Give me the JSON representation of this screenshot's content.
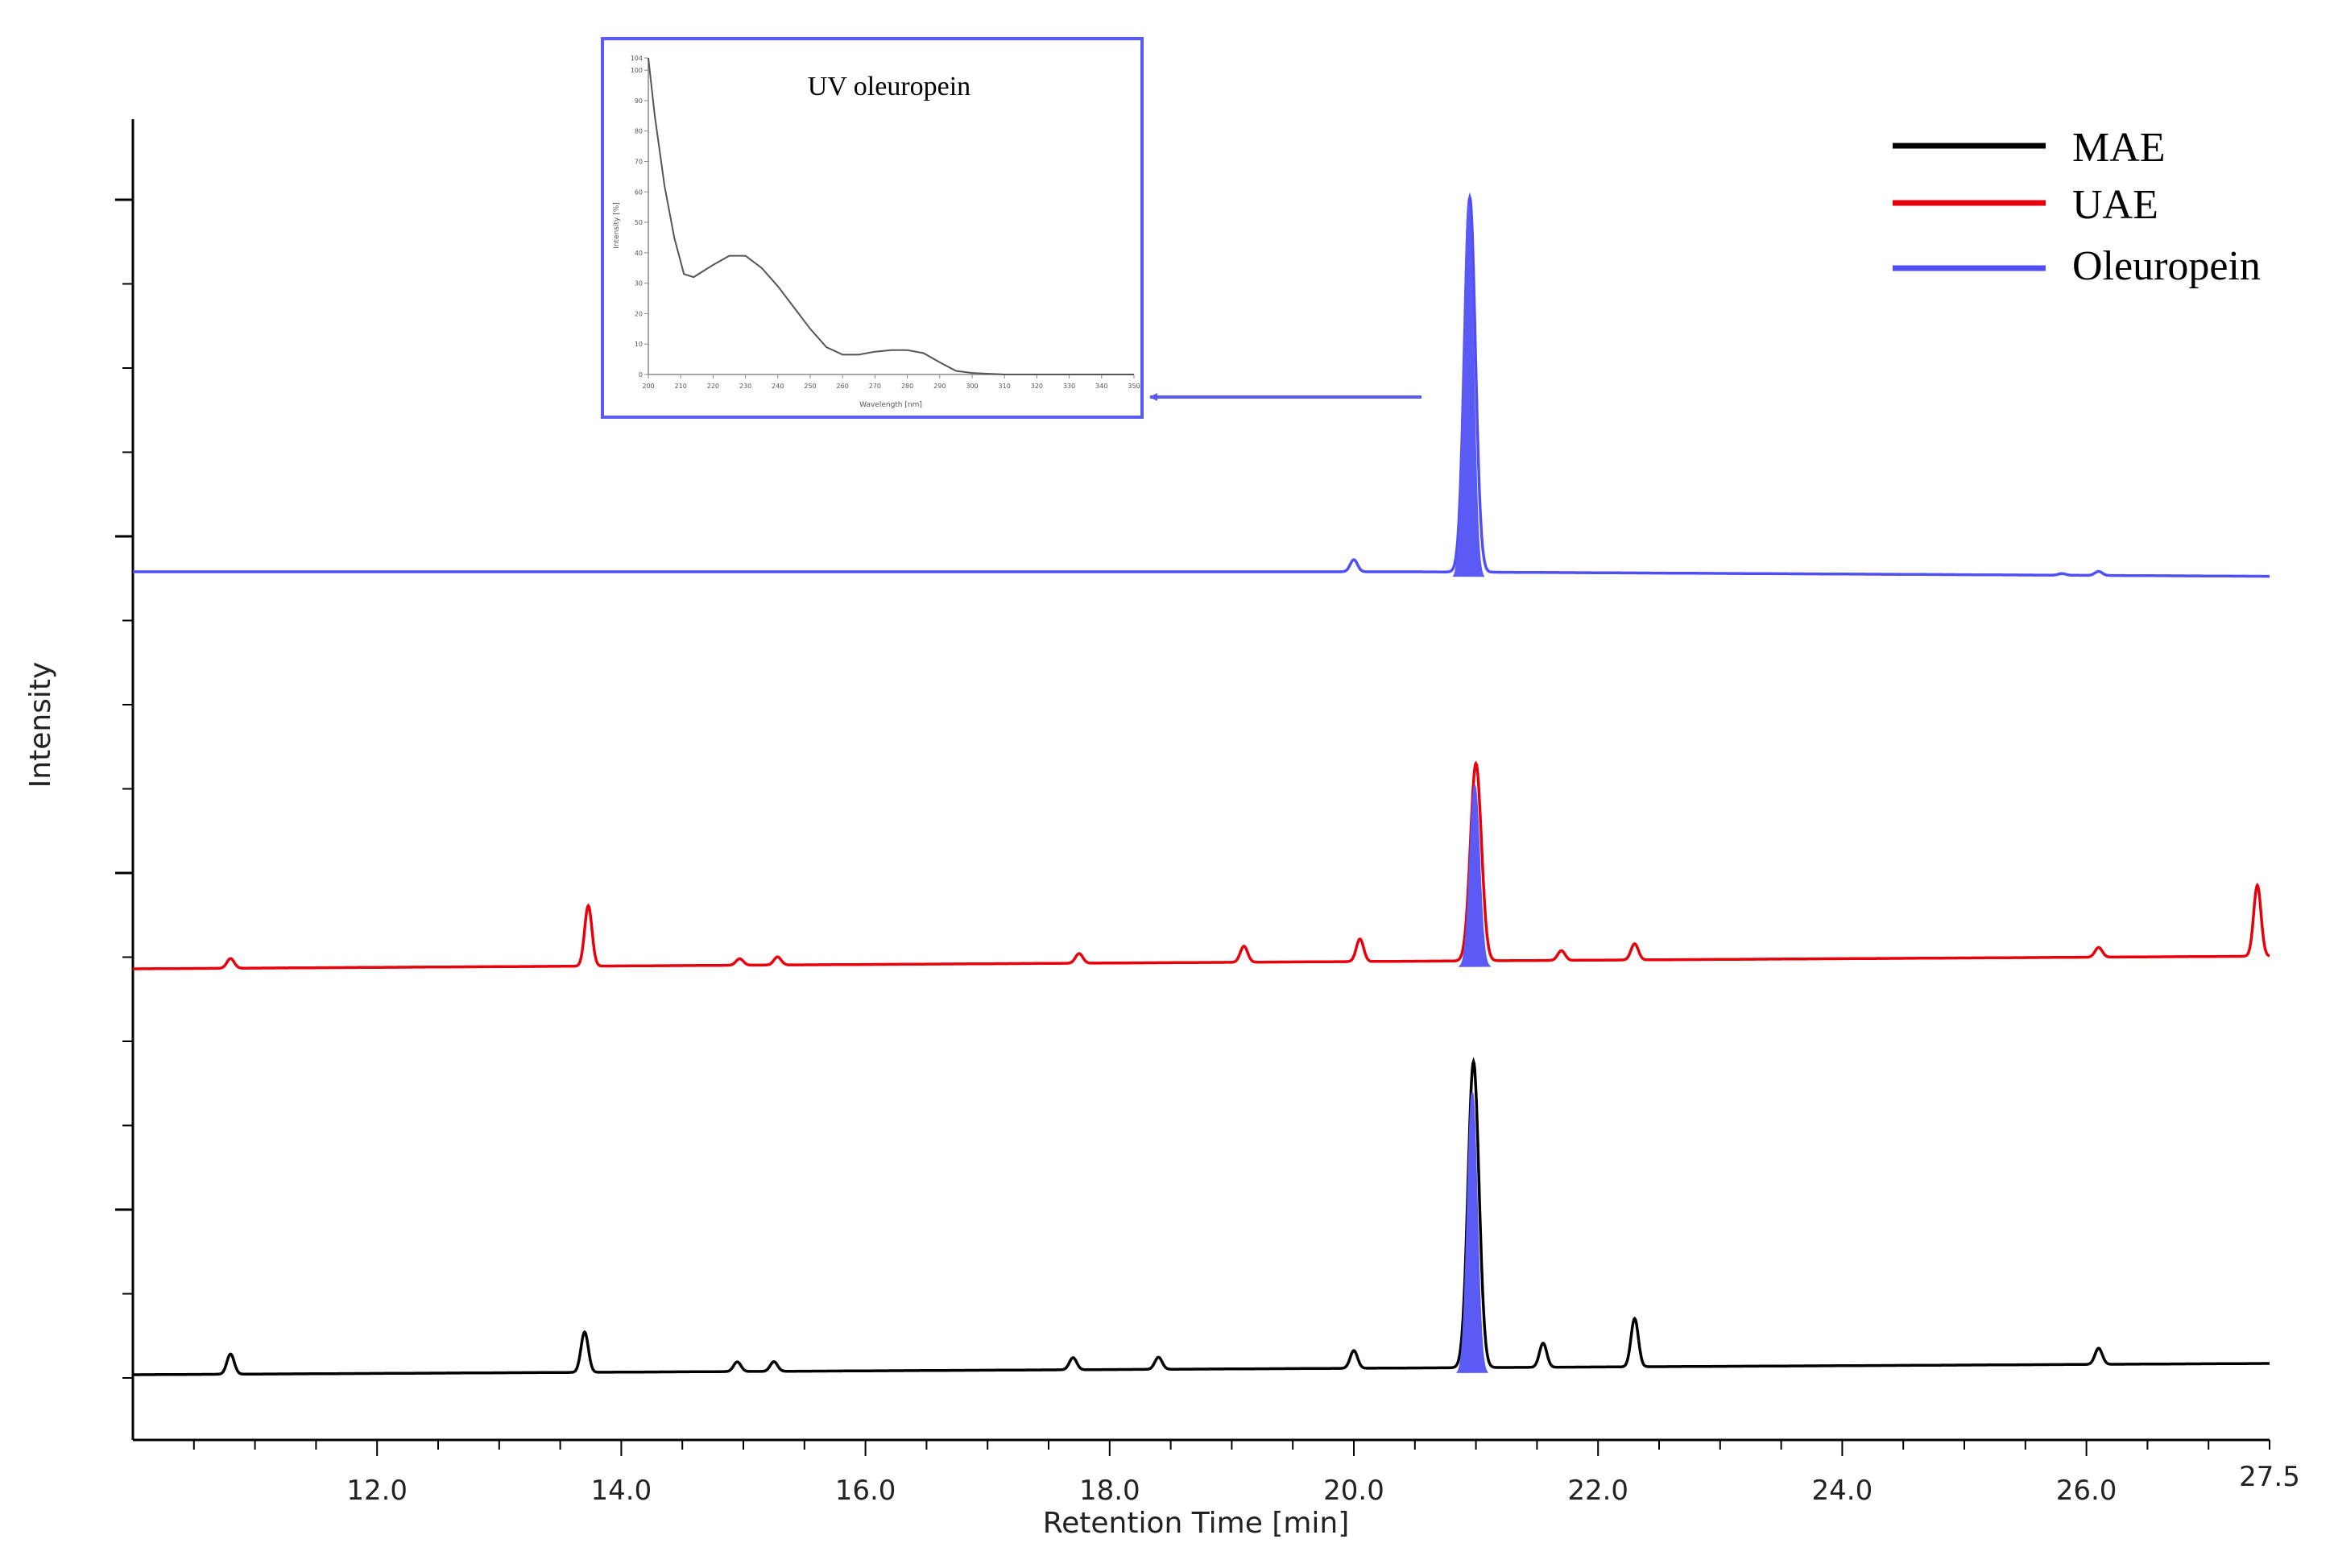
{
  "chart_data": {
    "type": "line",
    "xlabel": "Retention Time [min]",
    "ylabel": "Intensity",
    "xlim": [
      10.0,
      27.5
    ],
    "x_ticks": [
      12.0,
      14.0,
      16.0,
      18.0,
      20.0,
      22.0,
      24.0,
      26.0,
      27.5
    ],
    "x_tick_labels": [
      "12.0",
      "14.0",
      "16.0",
      "18.0",
      "20.0",
      "22.0",
      "24.0",
      "26.0",
      "27.5"
    ],
    "grid": false,
    "legend_position": "top-right",
    "highlighted_peak": {
      "retention_time": 20.95,
      "color": "#5a5af5"
    },
    "series": [
      {
        "name": "MAE",
        "color": "#000000",
        "baseline": 0.0,
        "peaks": [
          [
            10.8,
            0.25
          ],
          [
            13.7,
            0.5
          ],
          [
            14.95,
            0.12
          ],
          [
            15.25,
            0.12
          ],
          [
            17.7,
            0.15
          ],
          [
            18.4,
            0.15
          ],
          [
            20.0,
            0.22
          ],
          [
            20.98,
            3.8
          ],
          [
            21.55,
            0.3
          ],
          [
            22.3,
            0.6
          ],
          [
            26.1,
            0.2
          ]
        ]
      },
      {
        "name": "UAE",
        "color": "#e8000b",
        "baseline": 0.0,
        "peaks": [
          [
            10.8,
            0.12
          ],
          [
            13.73,
            0.75
          ],
          [
            14.97,
            0.08
          ],
          [
            15.28,
            0.1
          ],
          [
            17.75,
            0.12
          ],
          [
            19.1,
            0.2
          ],
          [
            20.05,
            0.28
          ],
          [
            21.0,
            2.45
          ],
          [
            21.7,
            0.12
          ],
          [
            22.3,
            0.2
          ],
          [
            26.1,
            0.12
          ],
          [
            27.4,
            0.88
          ]
        ]
      },
      {
        "name": "Oleuropein",
        "color": "#4f4ff5",
        "baseline": 0.0,
        "peaks": [
          [
            20.0,
            0.15
          ],
          [
            20.95,
            4.65
          ],
          [
            25.8,
            0.02
          ],
          [
            26.1,
            0.05
          ]
        ]
      }
    ],
    "inset": {
      "title": "UV oleuropein",
      "xlabel": "Wavelength [nm]",
      "ylabel": "Intensity [%]",
      "xlim": [
        200,
        350
      ],
      "ylim": [
        0,
        104
      ],
      "x_ticks": [
        200,
        210,
        220,
        230,
        240,
        250,
        260,
        270,
        280,
        290,
        300,
        310,
        320,
        330,
        340,
        350
      ],
      "y_ticks": [
        0,
        10,
        20,
        30,
        40,
        50,
        60,
        70,
        80,
        90,
        100,
        104
      ],
      "x": [
        200,
        202,
        205,
        208,
        211,
        214,
        217,
        220,
        225,
        230,
        235,
        240,
        245,
        250,
        255,
        260,
        265,
        270,
        275,
        280,
        285,
        290,
        295,
        300,
        310,
        320,
        330,
        340,
        350
      ],
      "y": [
        104,
        85,
        62,
        45,
        33,
        32,
        34,
        36,
        39,
        39,
        35,
        29,
        22,
        15,
        9,
        6.5,
        6.5,
        7.5,
        8,
        8,
        7,
        4,
        1.2,
        0.5,
        0,
        0,
        0,
        0,
        0
      ]
    }
  }
}
